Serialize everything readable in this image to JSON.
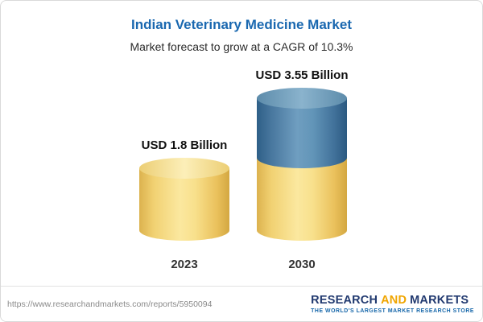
{
  "title": "Indian Veterinary Medicine Market",
  "subtitle": "Market forecast to grow at a CAGR of 10.3%",
  "chart_data": {
    "type": "bar",
    "subtype": "stacked-cylinder",
    "title": "Indian Veterinary Medicine Market",
    "subtitle": "Market forecast to grow at a CAGR of 10.3%",
    "unit": "USD Billion",
    "cagr": "10.3%",
    "categories": [
      "2023",
      "2030"
    ],
    "totals": [
      1.8,
      3.55
    ],
    "bar_labels": [
      "USD 1.8 Billion",
      "USD 3.55 Billion"
    ],
    "series": [
      {
        "name": "base-value",
        "color": "#F3D678",
        "values": [
          1.8,
          1.8
        ]
      },
      {
        "name": "forecast-growth",
        "color": "#4C82A8",
        "values": [
          0,
          1.75
        ]
      }
    ],
    "ylim": [
      0,
      4
    ],
    "grid": false,
    "legend": false
  },
  "footer": {
    "url": "https://www.researchandmarkets.com/reports/5950094",
    "logo": {
      "part1": "RESEARCH",
      "part2": "AND",
      "part3": "MARKETS",
      "tagline": "THE WORLD'S LARGEST MARKET RESEARCH STORE"
    }
  }
}
